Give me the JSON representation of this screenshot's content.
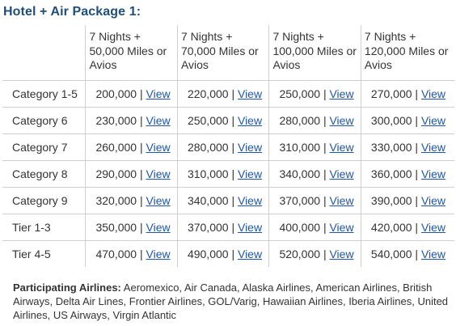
{
  "title": "Hotel + Air Package 1:",
  "table": {
    "headers": [
      "",
      "7 Nights + 50,000 Miles or Avios",
      "7 Nights + 70,000 Miles or Avios",
      "7 Nights + 100,000 Miles or Avios",
      "7 Nights + 120,000 Miles or Avios"
    ],
    "separator": "|",
    "link_label": "View",
    "rows": [
      {
        "category": "Category 1-5",
        "values": [
          "200,000",
          "220,000",
          "250,000",
          "270,000"
        ]
      },
      {
        "category": "Category 6",
        "values": [
          "230,000",
          "250,000",
          "280,000",
          "300,000"
        ]
      },
      {
        "category": "Category 7",
        "values": [
          "260,000",
          "280,000",
          "310,000",
          "330,000"
        ]
      },
      {
        "category": "Category 8",
        "values": [
          "290,000",
          "310,000",
          "340,000",
          "360,000"
        ]
      },
      {
        "category": "Category 9",
        "values": [
          "320,000",
          "340,000",
          "370,000",
          "390,000"
        ]
      },
      {
        "category": "Tier 1-3",
        "values": [
          "350,000",
          "370,000",
          "400,000",
          "420,000"
        ]
      },
      {
        "category": "Tier 4-5",
        "values": [
          "470,000",
          "490,000",
          "520,000",
          "540,000"
        ]
      }
    ]
  },
  "airlines": {
    "label": "Participating Airlines:",
    "list": "Aeromexico, Air Canada, Alaska Airlines, American Airlines, British Airways, Delta Air Lines, Frontier Airlines, GOL/Varig, Hawaiian Airlines, Iberia Airlines, United Airlines, US Airways, Virgin Atlantic"
  },
  "colors": {
    "title": "#1f4e79",
    "link": "#1f56a8",
    "border": "#cfcfcf",
    "text": "#333333"
  }
}
